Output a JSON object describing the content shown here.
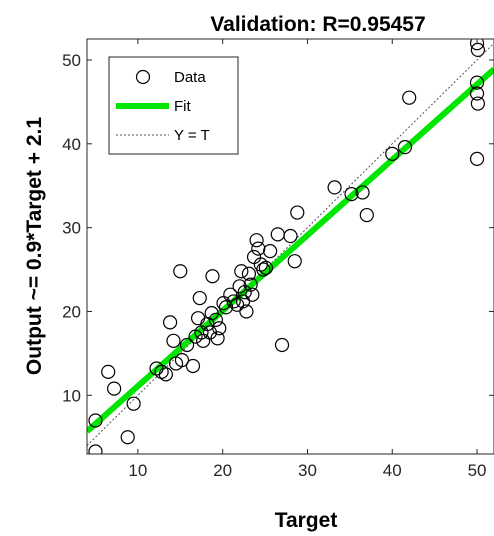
{
  "chart_data": {
    "type": "scatter",
    "title": "Validation: R=0.95457",
    "xlabel": "Target",
    "ylabel": "Output ~= 0.9*Target + 2.1",
    "xlim": [
      4,
      52
    ],
    "ylim": [
      3,
      52.5
    ],
    "xticks": [
      10,
      20,
      30,
      40,
      50
    ],
    "yticks": [
      10,
      20,
      30,
      40,
      50
    ],
    "grid": false,
    "legend_position": "top-left",
    "legend": [
      "Data",
      "Fit",
      "Y = T"
    ],
    "fit": {
      "slope": 0.9,
      "intercept": 2.1,
      "color": "#00e600"
    },
    "identity_line_color": "#555555",
    "marker_color": "#000000",
    "points": [
      [
        5,
        7
      ],
      [
        5,
        3.3
      ],
      [
        6.5,
        12.8
      ],
      [
        7.2,
        10.8
      ],
      [
        8.8,
        5
      ],
      [
        9.5,
        9
      ],
      [
        12.2,
        13.2
      ],
      [
        12.8,
        12.8
      ],
      [
        13.3,
        12.5
      ],
      [
        13.8,
        18.7
      ],
      [
        14.2,
        16.5
      ],
      [
        14.5,
        13.8
      ],
      [
        15,
        24.8
      ],
      [
        15.2,
        14.2
      ],
      [
        15.8,
        16
      ],
      [
        16.5,
        13.5
      ],
      [
        16.8,
        17
      ],
      [
        17.1,
        19.2
      ],
      [
        17.3,
        21.6
      ],
      [
        17.5,
        17.5
      ],
      [
        17.7,
        16.5
      ],
      [
        18.2,
        18.5
      ],
      [
        18.5,
        17.5
      ],
      [
        18.7,
        19.8
      ],
      [
        18.8,
        24.2
      ],
      [
        19.2,
        19
      ],
      [
        19.4,
        16.8
      ],
      [
        19.6,
        18
      ],
      [
        20.1,
        21
      ],
      [
        20.4,
        20.5
      ],
      [
        20.9,
        22
      ],
      [
        21.3,
        21.2
      ],
      [
        21.7,
        20.8
      ],
      [
        22,
        23
      ],
      [
        22.2,
        24.8
      ],
      [
        22.4,
        21.2
      ],
      [
        22.6,
        22.3
      ],
      [
        22.8,
        20
      ],
      [
        23.1,
        24.5
      ],
      [
        23.3,
        23.2
      ],
      [
        23.5,
        22
      ],
      [
        23.7,
        26.5
      ],
      [
        24,
        28.5
      ],
      [
        24.2,
        27.5
      ],
      [
        24.5,
        25.6
      ],
      [
        24.8,
        25
      ],
      [
        25.1,
        25.2
      ],
      [
        25.6,
        27.2
      ],
      [
        26.5,
        29.2
      ],
      [
        27,
        16
      ],
      [
        28,
        29
      ],
      [
        28.5,
        26
      ],
      [
        28.8,
        31.8
      ],
      [
        33.2,
        34.8
      ],
      [
        35.2,
        34
      ],
      [
        36.5,
        34.2
      ],
      [
        37,
        31.5
      ],
      [
        40,
        38.8
      ],
      [
        41.5,
        39.6
      ],
      [
        42,
        45.5
      ],
      [
        50,
        52
      ],
      [
        50.1,
        51.2
      ],
      [
        50,
        47.3
      ],
      [
        50,
        46
      ],
      [
        50.1,
        44.8
      ],
      [
        50,
        38.2
      ]
    ]
  }
}
